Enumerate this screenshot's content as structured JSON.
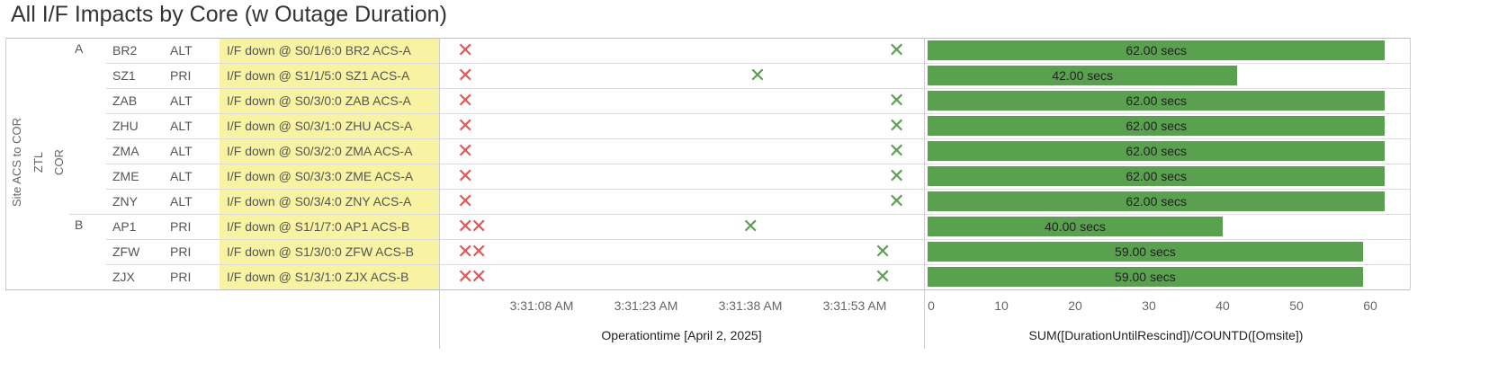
{
  "title": "All I/F Impacts by Core (w Outage Duration)",
  "row_header_labels": [
    "Site ACS to COR",
    "ZTL",
    "COR"
  ],
  "groups": [
    {
      "label": "A",
      "rows": [
        0,
        1,
        2,
        3,
        4,
        5,
        6
      ]
    },
    {
      "label": "B",
      "rows": [
        7,
        8,
        9
      ]
    }
  ],
  "rows": [
    {
      "site": "BR2",
      "role": "ALT",
      "event": "I/F down @ S0/1/6:0 BR2 ACS-A",
      "red_marks": 1,
      "green_time": "3:31:59 AM",
      "duration": 62,
      "duration_label": "62.00 secs"
    },
    {
      "site": "SZ1",
      "role": "PRI",
      "event": "I/F down @ S1/1/5:0 SZ1 ACS-A",
      "red_marks": 1,
      "green_time": "3:31:39 AM",
      "duration": 42,
      "duration_label": "42.00 secs"
    },
    {
      "site": "ZAB",
      "role": "ALT",
      "event": "I/F down @ S0/3/0:0 ZAB ACS-A",
      "red_marks": 1,
      "green_time": "3:31:59 AM",
      "duration": 62,
      "duration_label": "62.00 secs"
    },
    {
      "site": "ZHU",
      "role": "ALT",
      "event": "I/F down @ S0/3/1:0 ZHU ACS-A",
      "red_marks": 1,
      "green_time": "3:31:59 AM",
      "duration": 62,
      "duration_label": "62.00 secs"
    },
    {
      "site": "ZMA",
      "role": "ALT",
      "event": "I/F down @ S0/3/2:0 ZMA ACS-A",
      "red_marks": 1,
      "green_time": "3:31:59 AM",
      "duration": 62,
      "duration_label": "62.00 secs"
    },
    {
      "site": "ZME",
      "role": "ALT",
      "event": "I/F down @ S0/3/3:0 ZME ACS-A",
      "red_marks": 1,
      "green_time": "3:31:59 AM",
      "duration": 62,
      "duration_label": "62.00 secs"
    },
    {
      "site": "ZNY",
      "role": "ALT",
      "event": "I/F down @ S0/3/4:0 ZNY ACS-A",
      "red_marks": 1,
      "green_time": "3:31:59 AM",
      "duration": 62,
      "duration_label": "62.00 secs"
    },
    {
      "site": "AP1",
      "role": "PRI",
      "event": "I/F down @ S1/1/7:0 AP1 ACS-B",
      "red_marks": 2,
      "green_time": "3:31:38 AM",
      "duration": 40,
      "duration_label": "40.00 secs"
    },
    {
      "site": "ZFW",
      "role": "PRI",
      "event": "I/F down @ S1/3/0:0 ZFW ACS-B",
      "red_marks": 2,
      "green_time": "3:31:57 AM",
      "duration": 59,
      "duration_label": "59.00 secs"
    },
    {
      "site": "ZJX",
      "role": "PRI",
      "event": "I/F down @ S1/3/1:0 ZJX ACS-B",
      "red_marks": 2,
      "green_time": "3:31:57 AM",
      "duration": 59,
      "duration_label": "59.00 secs"
    }
  ],
  "chart_data": [
    {
      "type": "scatter",
      "xlabel": "Operationtime [April 2, 2025]",
      "x_ticks": [
        "3:31:08 AM",
        "3:31:23 AM",
        "3:31:38 AM",
        "3:31:53 AM"
      ],
      "marker_colors": {
        "down": "#e15759",
        "up": "#59a14f"
      },
      "series": [
        {
          "values": [
            "3:30:58 AM",
            "3:30:58 AM",
            "3:30:58 AM",
            "3:30:58 AM",
            "3:30:58 AM",
            "3:30:58 AM",
            "3:30:58 AM",
            "3:30:58 AM",
            "3:30:58 AM",
            "3:30:58 AM"
          ]
        },
        {
          "values": [
            "3:31:59 AM",
            "3:31:39 AM",
            "3:31:59 AM",
            "3:31:59 AM",
            "3:31:59 AM",
            "3:31:59 AM",
            "3:31:59 AM",
            "3:31:38 AM",
            "3:31:57 AM",
            "3:31:57 AM"
          ]
        }
      ]
    },
    {
      "type": "bar",
      "orientation": "horizontal",
      "categories": [
        "BR2",
        "SZ1",
        "ZAB",
        "ZHU",
        "ZMA",
        "ZME",
        "ZNY",
        "AP1",
        "ZFW",
        "ZJX"
      ],
      "values": [
        62,
        42,
        62,
        62,
        62,
        62,
        62,
        40,
        59,
        59
      ],
      "xlabel": "SUM([DurationUntilRescind])/COUNTD([Omsite])",
      "xlim": [
        0,
        65
      ],
      "x_ticks": [
        0,
        10,
        20,
        30,
        40,
        50,
        60
      ],
      "bar_color": "#59a14f"
    }
  ]
}
